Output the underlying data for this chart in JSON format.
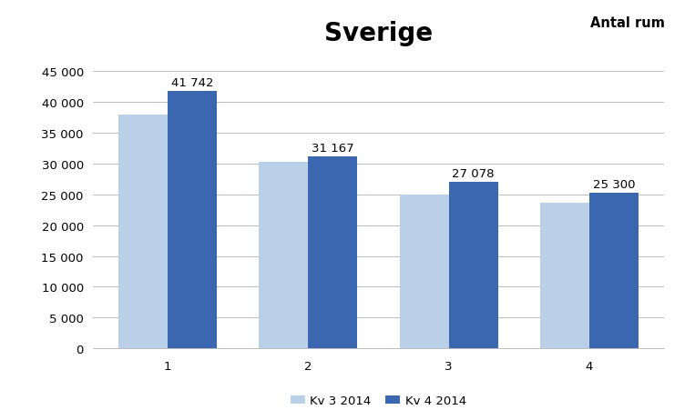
{
  "title": "Sverige",
  "subtitle": "Antal rum",
  "categories": [
    "1",
    "2",
    "3",
    "4"
  ],
  "kv3_values": [
    38000,
    30300,
    25000,
    23700
  ],
  "kv4_values": [
    41742,
    31167,
    27078,
    25300
  ],
  "kv3_label": "Kv 3 2014",
  "kv4_label": "Kv 4 2014",
  "kv3_color": "#bad0e8",
  "kv4_color": "#3a67b0",
  "bar_labels_kv4": [
    "41 742",
    "31 167",
    "27 078",
    "25 300"
  ],
  "ylim": [
    0,
    48000
  ],
  "yticks": [
    0,
    5000,
    10000,
    15000,
    20000,
    25000,
    30000,
    35000,
    40000,
    45000
  ],
  "ytick_labels": [
    "0",
    "5 000",
    "10 000",
    "15 000",
    "20 000",
    "25 000",
    "30 000",
    "35 000",
    "40 000",
    "45 000"
  ],
  "background_color": "#ffffff",
  "title_fontsize": 20,
  "subtitle_fontsize": 10.5,
  "label_fontsize": 9.5,
  "tick_fontsize": 9.5,
  "legend_fontsize": 9.5
}
